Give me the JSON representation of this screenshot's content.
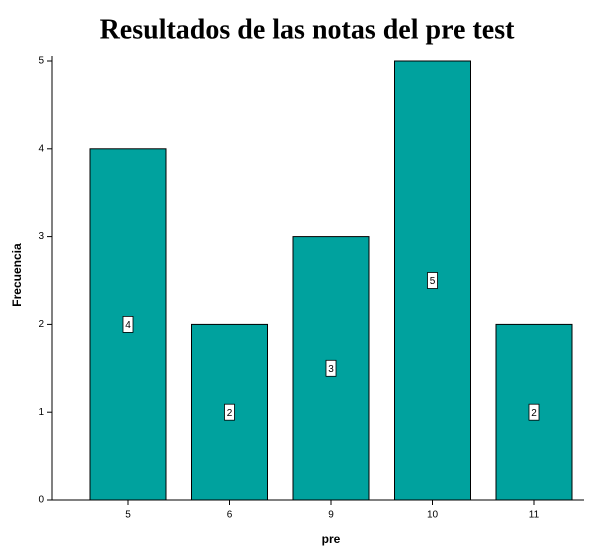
{
  "chart_data": {
    "type": "bar",
    "title": "Resultados de las notas del pre test",
    "x_label": "pre",
    "y_label": "Frecuencia",
    "categories": [
      "5",
      "6",
      "9",
      "10",
      "11"
    ],
    "values": [
      4,
      2,
      3,
      5,
      2
    ],
    "color": "#00a29e",
    "ylim": [
      0,
      5
    ],
    "yticks": [
      0,
      1,
      2,
      3,
      4,
      5
    ],
    "grid": false
  }
}
